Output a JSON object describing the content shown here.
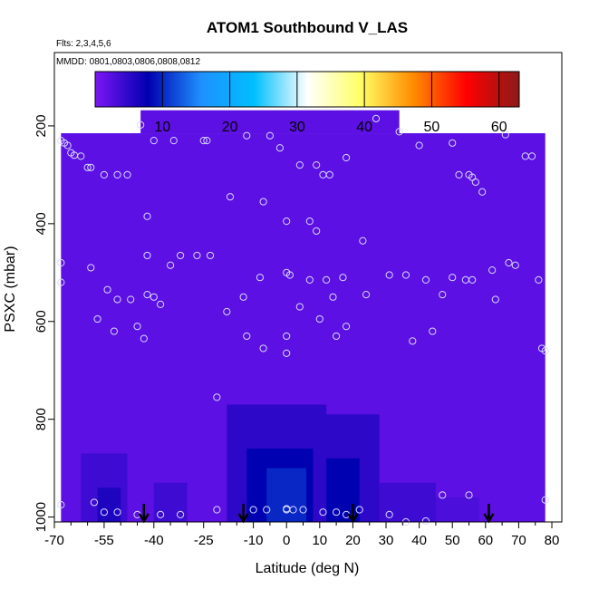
{
  "chart_data": {
    "type": "heatmap",
    "title": "ATOM1 Southbound V_LAS",
    "flights_note": "Flts: 2,3,4,5,6",
    "dates_note": "MMDD: 0801,0803,0806,0808,0812",
    "xlabel": "Latitude (deg N)",
    "ylabel": "PSXC (mbar)",
    "xlim": [
      -70,
      83
    ],
    "ylim": [
      1010,
      50
    ],
    "x_ticks": [
      -70,
      -55,
      -40,
      -25,
      -10,
      0,
      10,
      20,
      30,
      40,
      50,
      60,
      70,
      80
    ],
    "x_minor_ticks": [
      -65,
      -60,
      -50,
      -45,
      -35,
      -30,
      -20,
      -15,
      -5,
      5,
      15,
      25,
      35,
      45,
      55,
      65,
      75
    ],
    "y_ticks": [
      200,
      400,
      600,
      800,
      1000
    ],
    "y_tick_labels": [
      "200",
      "400",
      "600",
      "800",
      "1000"
    ],
    "colorbar": {
      "min": 0,
      "max": 63,
      "ticks": [
        10,
        20,
        30,
        40,
        50,
        60
      ],
      "stops": [
        "#7b16f5",
        "#0000b0",
        "#1e90ff",
        "#00bfff",
        "#ffffff",
        "#ffff66",
        "#ff8c00",
        "#ff0000",
        "#8b1a1a"
      ]
    },
    "profile_markers_lat": [
      -43,
      -13,
      20,
      61
    ],
    "regions": [
      {
        "lat": [
          -68,
          78
        ],
        "p": [
          215,
          1010
        ],
        "value": 2
      },
      {
        "lat": [
          -44,
          34
        ],
        "p": [
          168,
          215
        ],
        "value": 2
      },
      {
        "lat": [
          -62,
          -48
        ],
        "p": [
          870,
          1010
        ],
        "value": 4
      },
      {
        "lat": [
          -57,
          -50
        ],
        "p": [
          940,
          1010
        ],
        "value": 6
      },
      {
        "lat": [
          -40,
          -30
        ],
        "p": [
          930,
          1010
        ],
        "value": 4
      },
      {
        "lat": [
          -18,
          12
        ],
        "p": [
          770,
          1010
        ],
        "value": 5
      },
      {
        "lat": [
          -12,
          8
        ],
        "p": [
          860,
          1010
        ],
        "value": 8
      },
      {
        "lat": [
          -6,
          6
        ],
        "p": [
          900,
          1010
        ],
        "value": 10
      },
      {
        "lat": [
          8,
          28
        ],
        "p": [
          790,
          1010
        ],
        "value": 5
      },
      {
        "lat": [
          12,
          22
        ],
        "p": [
          880,
          1010
        ],
        "value": 8
      },
      {
        "lat": [
          28,
          45
        ],
        "p": [
          930,
          1010
        ],
        "value": 4
      },
      {
        "lat": [
          45,
          58
        ],
        "p": [
          960,
          1010
        ],
        "value": 3
      }
    ],
    "points": [
      {
        "lat": -68,
        "p": 230
      },
      {
        "lat": -67,
        "p": 235
      },
      {
        "lat": -66,
        "p": 240
      },
      {
        "lat": -65,
        "p": 255
      },
      {
        "lat": -64,
        "p": 260
      },
      {
        "lat": -62,
        "p": 262
      },
      {
        "lat": -60,
        "p": 285
      },
      {
        "lat": -59,
        "p": 285
      },
      {
        "lat": -55,
        "p": 300
      },
      {
        "lat": -51,
        "p": 300
      },
      {
        "lat": -48,
        "p": 300
      },
      {
        "lat": -44,
        "p": 198
      },
      {
        "lat": -40,
        "p": 230
      },
      {
        "lat": -34,
        "p": 230
      },
      {
        "lat": -25,
        "p": 230
      },
      {
        "lat": -24,
        "p": 230
      },
      {
        "lat": -17,
        "p": 345
      },
      {
        "lat": -12,
        "p": 220
      },
      {
        "lat": -5,
        "p": 220
      },
      {
        "lat": -2,
        "p": 245
      },
      {
        "lat": 4,
        "p": 280
      },
      {
        "lat": 9,
        "p": 280
      },
      {
        "lat": 11,
        "p": 300
      },
      {
        "lat": 13,
        "p": 300
      },
      {
        "lat": 18,
        "p": 265
      },
      {
        "lat": 27,
        "p": 185
      },
      {
        "lat": 34,
        "p": 212
      },
      {
        "lat": 40,
        "p": 240
      },
      {
        "lat": 50,
        "p": 235
      },
      {
        "lat": 52,
        "p": 300
      },
      {
        "lat": 55,
        "p": 300
      },
      {
        "lat": 56,
        "p": 305
      },
      {
        "lat": 57,
        "p": 315
      },
      {
        "lat": 59,
        "p": 335
      },
      {
        "lat": 66,
        "p": 218
      },
      {
        "lat": 72,
        "p": 262
      },
      {
        "lat": 74,
        "p": 262
      },
      {
        "lat": -42,
        "p": 385
      },
      {
        "lat": -7,
        "p": 355
      },
      {
        "lat": 0,
        "p": 395
      },
      {
        "lat": 7,
        "p": 395
      },
      {
        "lat": 9,
        "p": 415
      },
      {
        "lat": 23,
        "p": 435
      },
      {
        "lat": -68,
        "p": 480
      },
      {
        "lat": -68,
        "p": 520
      },
      {
        "lat": -59,
        "p": 490
      },
      {
        "lat": -42,
        "p": 465
      },
      {
        "lat": -35,
        "p": 485
      },
      {
        "lat": -32,
        "p": 465
      },
      {
        "lat": -27,
        "p": 465
      },
      {
        "lat": -23,
        "p": 465
      },
      {
        "lat": -42,
        "p": 545
      },
      {
        "lat": -40,
        "p": 550
      },
      {
        "lat": -38,
        "p": 565
      },
      {
        "lat": -54,
        "p": 535
      },
      {
        "lat": -51,
        "p": 555
      },
      {
        "lat": -47,
        "p": 555
      },
      {
        "lat": -45,
        "p": 610
      },
      {
        "lat": -43,
        "p": 635
      },
      {
        "lat": -52,
        "p": 620
      },
      {
        "lat": -57,
        "p": 595
      },
      {
        "lat": -18,
        "p": 580
      },
      {
        "lat": -13,
        "p": 550
      },
      {
        "lat": -8,
        "p": 510
      },
      {
        "lat": 0,
        "p": 500
      },
      {
        "lat": 1,
        "p": 505
      },
      {
        "lat": 4,
        "p": 570
      },
      {
        "lat": 7,
        "p": 515
      },
      {
        "lat": 10,
        "p": 595
      },
      {
        "lat": 12,
        "p": 515
      },
      {
        "lat": 14,
        "p": 550
      },
      {
        "lat": 15,
        "p": 630
      },
      {
        "lat": 17,
        "p": 510
      },
      {
        "lat": 18,
        "p": 610
      },
      {
        "lat": 24,
        "p": 545
      },
      {
        "lat": 31,
        "p": 505
      },
      {
        "lat": 36,
        "p": 505
      },
      {
        "lat": 38,
        "p": 640
      },
      {
        "lat": 42,
        "p": 515
      },
      {
        "lat": 44,
        "p": 620
      },
      {
        "lat": 47,
        "p": 545
      },
      {
        "lat": 50,
        "p": 510
      },
      {
        "lat": 54,
        "p": 515
      },
      {
        "lat": 56,
        "p": 515
      },
      {
        "lat": 62,
        "p": 495
      },
      {
        "lat": 63,
        "p": 555
      },
      {
        "lat": 67,
        "p": 480
      },
      {
        "lat": 69,
        "p": 485
      },
      {
        "lat": 76,
        "p": 515
      },
      {
        "lat": 77,
        "p": 655
      },
      {
        "lat": 78,
        "p": 660
      },
      {
        "lat": -12,
        "p": 630
      },
      {
        "lat": -7,
        "p": 655
      },
      {
        "lat": 0,
        "p": 630
      },
      {
        "lat": 0,
        "p": 665
      },
      {
        "lat": -21,
        "p": 755
      },
      {
        "lat": -58,
        "p": 970
      },
      {
        "lat": -55,
        "p": 990
      },
      {
        "lat": -51,
        "p": 990
      },
      {
        "lat": -45,
        "p": 995
      },
      {
        "lat": -38,
        "p": 995
      },
      {
        "lat": -32,
        "p": 995
      },
      {
        "lat": -21,
        "p": 985
      },
      {
        "lat": -10,
        "p": 985
      },
      {
        "lat": -6,
        "p": 985
      },
      {
        "lat": 0,
        "p": 985
      },
      {
        "lat": 0,
        "p": 983
      },
      {
        "lat": 2,
        "p": 985
      },
      {
        "lat": 5,
        "p": 985
      },
      {
        "lat": 11,
        "p": 990
      },
      {
        "lat": 15,
        "p": 990
      },
      {
        "lat": 18,
        "p": 995
      },
      {
        "lat": 22,
        "p": 985
      },
      {
        "lat": 31,
        "p": 995
      },
      {
        "lat": 36,
        "p": 1010
      },
      {
        "lat": 42,
        "p": 1008
      },
      {
        "lat": 47,
        "p": 955
      },
      {
        "lat": 55,
        "p": 955
      },
      {
        "lat": 78,
        "p": 965
      },
      {
        "lat": -68,
        "p": 975
      }
    ]
  }
}
